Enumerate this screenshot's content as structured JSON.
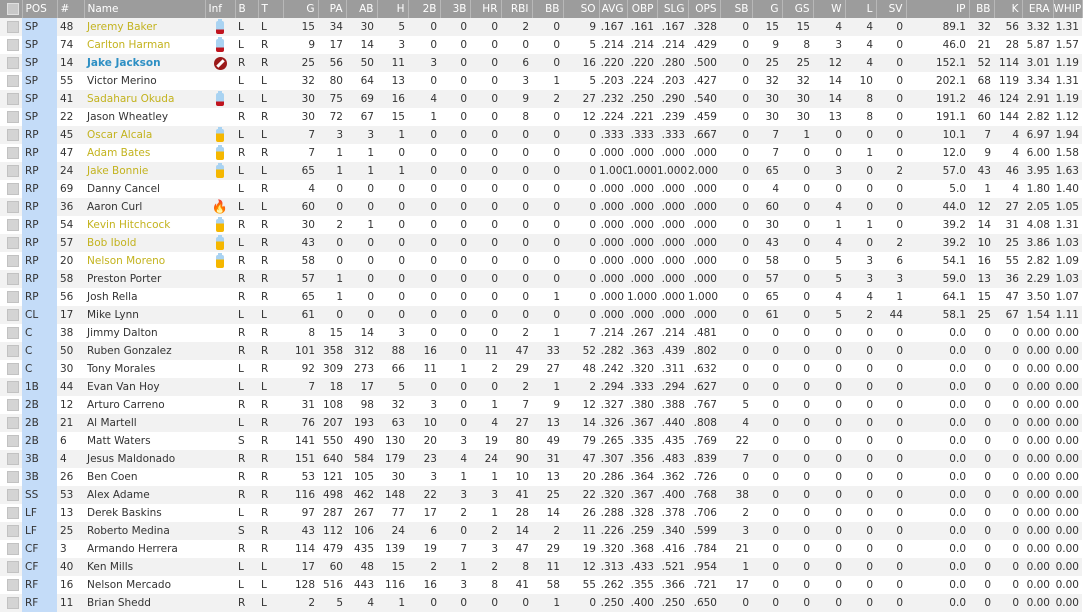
{
  "columns": [
    "POS",
    "#",
    "Name",
    "Inf",
    "B",
    "T",
    "G",
    "PA",
    "AB",
    "H",
    "2B",
    "3B",
    "HR",
    "RBI",
    "BB",
    "SO",
    "AVG",
    "OBP",
    "SLG",
    "OPS",
    "SB",
    "G",
    "GS",
    "W",
    "L",
    "SV",
    "IP",
    "BB",
    "K",
    "ERA",
    "WHIP"
  ],
  "colors": {
    "injured_name": "#c3b31e",
    "suspended_name": "#2d8fc4",
    "pos_column": "#c4dcf8",
    "header": "#9c9c9c"
  },
  "rows": [
    {
      "pos": "SP",
      "num": "48",
      "name": "Jeremy Baker",
      "inf": "battery-low-icon",
      "status": "injured",
      "b": "L",
      "t": "L",
      "stats": [
        "15",
        "34",
        "30",
        "5",
        "0",
        "0",
        "0",
        "2",
        "0",
        "9",
        ".167",
        ".161",
        ".167",
        ".328",
        "0",
        "15",
        "15",
        "4",
        "4",
        "0",
        "89.1",
        "32",
        "56",
        "3.32",
        "1.31"
      ]
    },
    {
      "pos": "SP",
      "num": "74",
      "name": "Carlton Harman",
      "inf": "battery-low-icon",
      "status": "injured",
      "b": "L",
      "t": "R",
      "stats": [
        "9",
        "17",
        "14",
        "3",
        "0",
        "0",
        "0",
        "0",
        "0",
        "5",
        ".214",
        ".214",
        ".214",
        ".429",
        "0",
        "9",
        "8",
        "3",
        "4",
        "0",
        "46.0",
        "21",
        "28",
        "5.87",
        "1.57"
      ]
    },
    {
      "pos": "SP",
      "num": "14",
      "name": "Jake Jackson",
      "inf": "banned-icon",
      "status": "suspended",
      "b": "R",
      "t": "R",
      "stats": [
        "25",
        "56",
        "50",
        "11",
        "3",
        "0",
        "0",
        "6",
        "0",
        "16",
        ".220",
        ".220",
        ".280",
        ".500",
        "0",
        "25",
        "25",
        "12",
        "4",
        "0",
        "152.1",
        "52",
        "114",
        "3.01",
        "1.19"
      ]
    },
    {
      "pos": "SP",
      "num": "55",
      "name": "Victor Merino",
      "inf": "",
      "status": "normal",
      "b": "L",
      "t": "L",
      "stats": [
        "32",
        "80",
        "64",
        "13",
        "0",
        "0",
        "0",
        "3",
        "1",
        "5",
        ".203",
        ".224",
        ".203",
        ".427",
        "0",
        "32",
        "32",
        "14",
        "10",
        "0",
        "202.1",
        "68",
        "119",
        "3.34",
        "1.31"
      ]
    },
    {
      "pos": "SP",
      "num": "41",
      "name": "Sadaharu Okuda",
      "inf": "battery-low-icon",
      "status": "injured",
      "b": "L",
      "t": "L",
      "stats": [
        "30",
        "75",
        "69",
        "16",
        "4",
        "0",
        "0",
        "9",
        "2",
        "27",
        ".232",
        ".250",
        ".290",
        ".540",
        "0",
        "30",
        "30",
        "14",
        "8",
        "0",
        "191.2",
        "46",
        "124",
        "2.91",
        "1.19"
      ]
    },
    {
      "pos": "SP",
      "num": "22",
      "name": "Jason Wheatley",
      "inf": "",
      "status": "normal",
      "b": "R",
      "t": "R",
      "stats": [
        "30",
        "72",
        "67",
        "15",
        "1",
        "0",
        "0",
        "8",
        "0",
        "12",
        ".224",
        ".221",
        ".239",
        ".459",
        "0",
        "30",
        "30",
        "13",
        "8",
        "0",
        "191.1",
        "60",
        "144",
        "2.82",
        "1.12"
      ]
    },
    {
      "pos": "RP",
      "num": "45",
      "name": "Oscar Alcala",
      "inf": "battery-mid-icon",
      "status": "injured",
      "b": "L",
      "t": "L",
      "stats": [
        "7",
        "3",
        "3",
        "1",
        "0",
        "0",
        "0",
        "0",
        "0",
        "0",
        ".333",
        ".333",
        ".333",
        ".667",
        "0",
        "7",
        "1",
        "0",
        "0",
        "0",
        "10.1",
        "7",
        "4",
        "6.97",
        "1.94"
      ]
    },
    {
      "pos": "RP",
      "num": "47",
      "name": "Adam Bates",
      "inf": "battery-mid-icon",
      "status": "injured",
      "b": "R",
      "t": "R",
      "stats": [
        "7",
        "1",
        "1",
        "0",
        "0",
        "0",
        "0",
        "0",
        "0",
        "0",
        ".000",
        ".000",
        ".000",
        ".000",
        "0",
        "7",
        "0",
        "0",
        "1",
        "0",
        "12.0",
        "9",
        "4",
        "6.00",
        "1.58"
      ]
    },
    {
      "pos": "RP",
      "num": "24",
      "name": "Jake Bonnie",
      "inf": "battery-mid-icon",
      "status": "injured",
      "b": "L",
      "t": "L",
      "stats": [
        "65",
        "1",
        "1",
        "1",
        "0",
        "0",
        "0",
        "0",
        "0",
        "0",
        "1.000",
        "1.000",
        "1.000",
        "2.000",
        "0",
        "65",
        "0",
        "3",
        "0",
        "2",
        "57.0",
        "43",
        "46",
        "3.95",
        "1.63"
      ]
    },
    {
      "pos": "RP",
      "num": "69",
      "name": "Danny Cancel",
      "inf": "",
      "status": "normal",
      "b": "L",
      "t": "R",
      "stats": [
        "4",
        "0",
        "0",
        "0",
        "0",
        "0",
        "0",
        "0",
        "0",
        "0",
        ".000",
        ".000",
        ".000",
        ".000",
        "0",
        "4",
        "0",
        "0",
        "0",
        "0",
        "5.0",
        "1",
        "4",
        "1.80",
        "1.40"
      ]
    },
    {
      "pos": "RP",
      "num": "36",
      "name": "Aaron Curl",
      "inf": "fire-icon",
      "status": "normal",
      "b": "L",
      "t": "L",
      "stats": [
        "60",
        "0",
        "0",
        "0",
        "0",
        "0",
        "0",
        "0",
        "0",
        "0",
        ".000",
        ".000",
        ".000",
        ".000",
        "0",
        "60",
        "0",
        "4",
        "0",
        "0",
        "44.0",
        "12",
        "27",
        "2.05",
        "1.05"
      ]
    },
    {
      "pos": "RP",
      "num": "54",
      "name": "Kevin Hitchcock",
      "inf": "battery-mid-icon",
      "status": "injured",
      "b": "R",
      "t": "R",
      "stats": [
        "30",
        "2",
        "1",
        "0",
        "0",
        "0",
        "0",
        "0",
        "0",
        "0",
        ".000",
        ".000",
        ".000",
        ".000",
        "0",
        "30",
        "0",
        "1",
        "1",
        "0",
        "39.2",
        "14",
        "31",
        "4.08",
        "1.31"
      ]
    },
    {
      "pos": "RP",
      "num": "57",
      "name": "Bob Ibold",
      "inf": "battery-mid-icon",
      "status": "injured",
      "b": "L",
      "t": "R",
      "stats": [
        "43",
        "0",
        "0",
        "0",
        "0",
        "0",
        "0",
        "0",
        "0",
        "0",
        ".000",
        ".000",
        ".000",
        ".000",
        "0",
        "43",
        "0",
        "4",
        "0",
        "2",
        "39.2",
        "10",
        "25",
        "3.86",
        "1.03"
      ]
    },
    {
      "pos": "RP",
      "num": "20",
      "name": "Nelson Moreno",
      "inf": "battery-mid-icon",
      "status": "injured",
      "b": "R",
      "t": "R",
      "stats": [
        "58",
        "0",
        "0",
        "0",
        "0",
        "0",
        "0",
        "0",
        "0",
        "0",
        ".000",
        ".000",
        ".000",
        ".000",
        "0",
        "58",
        "0",
        "5",
        "3",
        "6",
        "54.1",
        "16",
        "55",
        "2.82",
        "1.09"
      ]
    },
    {
      "pos": "RP",
      "num": "58",
      "name": "Preston Porter",
      "inf": "",
      "status": "normal",
      "b": "R",
      "t": "R",
      "stats": [
        "57",
        "1",
        "0",
        "0",
        "0",
        "0",
        "0",
        "0",
        "0",
        "0",
        ".000",
        ".000",
        ".000",
        ".000",
        "0",
        "57",
        "0",
        "5",
        "3",
        "3",
        "59.0",
        "13",
        "36",
        "2.29",
        "1.03"
      ]
    },
    {
      "pos": "RP",
      "num": "56",
      "name": "Josh Rella",
      "inf": "",
      "status": "normal",
      "b": "R",
      "t": "R",
      "stats": [
        "65",
        "1",
        "0",
        "0",
        "0",
        "0",
        "0",
        "0",
        "1",
        "0",
        ".000",
        "1.000",
        ".000",
        "1.000",
        "0",
        "65",
        "0",
        "4",
        "4",
        "1",
        "64.1",
        "15",
        "47",
        "3.50",
        "1.07"
      ]
    },
    {
      "pos": "CL",
      "num": "17",
      "name": "Mike Lynn",
      "inf": "",
      "status": "normal",
      "b": "L",
      "t": "L",
      "stats": [
        "61",
        "0",
        "0",
        "0",
        "0",
        "0",
        "0",
        "0",
        "0",
        "0",
        ".000",
        ".000",
        ".000",
        ".000",
        "0",
        "61",
        "0",
        "5",
        "2",
        "44",
        "58.1",
        "25",
        "67",
        "1.54",
        "1.11"
      ]
    },
    {
      "pos": "C",
      "num": "38",
      "name": "Jimmy Dalton",
      "inf": "",
      "status": "normal",
      "b": "R",
      "t": "R",
      "stats": [
        "8",
        "15",
        "14",
        "3",
        "0",
        "0",
        "0",
        "2",
        "1",
        "7",
        ".214",
        ".267",
        ".214",
        ".481",
        "0",
        "0",
        "0",
        "0",
        "0",
        "0",
        "0.0",
        "0",
        "0",
        "0.00",
        "0.00"
      ]
    },
    {
      "pos": "C",
      "num": "50",
      "name": "Ruben Gonzalez",
      "inf": "",
      "status": "normal",
      "b": "R",
      "t": "R",
      "stats": [
        "101",
        "358",
        "312",
        "88",
        "16",
        "0",
        "11",
        "47",
        "33",
        "52",
        ".282",
        ".363",
        ".439",
        ".802",
        "0",
        "0",
        "0",
        "0",
        "0",
        "0",
        "0.0",
        "0",
        "0",
        "0.00",
        "0.00"
      ]
    },
    {
      "pos": "C",
      "num": "30",
      "name": "Tony Morales",
      "inf": "",
      "status": "normal",
      "b": "L",
      "t": "R",
      "stats": [
        "92",
        "309",
        "273",
        "66",
        "11",
        "1",
        "2",
        "29",
        "27",
        "48",
        ".242",
        ".320",
        ".311",
        ".632",
        "0",
        "0",
        "0",
        "0",
        "0",
        "0",
        "0.0",
        "0",
        "0",
        "0.00",
        "0.00"
      ]
    },
    {
      "pos": "1B",
      "num": "44",
      "name": "Evan Van Hoy",
      "inf": "",
      "status": "normal",
      "b": "L",
      "t": "L",
      "stats": [
        "7",
        "18",
        "17",
        "5",
        "0",
        "0",
        "0",
        "2",
        "1",
        "2",
        ".294",
        ".333",
        ".294",
        ".627",
        "0",
        "0",
        "0",
        "0",
        "0",
        "0",
        "0.0",
        "0",
        "0",
        "0.00",
        "0.00"
      ]
    },
    {
      "pos": "2B",
      "num": "12",
      "name": "Arturo Carreno",
      "inf": "",
      "status": "normal",
      "b": "R",
      "t": "R",
      "stats": [
        "31",
        "108",
        "98",
        "32",
        "3",
        "0",
        "1",
        "7",
        "9",
        "12",
        ".327",
        ".380",
        ".388",
        ".767",
        "5",
        "0",
        "0",
        "0",
        "0",
        "0",
        "0.0",
        "0",
        "0",
        "0.00",
        "0.00"
      ]
    },
    {
      "pos": "2B",
      "num": "21",
      "name": "Al Martell",
      "inf": "",
      "status": "normal",
      "b": "L",
      "t": "R",
      "stats": [
        "76",
        "207",
        "193",
        "63",
        "10",
        "0",
        "4",
        "27",
        "13",
        "14",
        ".326",
        ".367",
        ".440",
        ".808",
        "4",
        "0",
        "0",
        "0",
        "0",
        "0",
        "0.0",
        "0",
        "0",
        "0.00",
        "0.00"
      ]
    },
    {
      "pos": "2B",
      "num": "6",
      "name": "Matt Waters",
      "inf": "",
      "status": "normal",
      "b": "S",
      "t": "R",
      "stats": [
        "141",
        "550",
        "490",
        "130",
        "20",
        "3",
        "19",
        "80",
        "49",
        "79",
        ".265",
        ".335",
        ".435",
        ".769",
        "22",
        "0",
        "0",
        "0",
        "0",
        "0",
        "0.0",
        "0",
        "0",
        "0.00",
        "0.00"
      ]
    },
    {
      "pos": "3B",
      "num": "4",
      "name": "Jesus Maldonado",
      "inf": "",
      "status": "normal",
      "b": "R",
      "t": "R",
      "stats": [
        "151",
        "640",
        "584",
        "179",
        "23",
        "4",
        "24",
        "90",
        "31",
        "47",
        ".307",
        ".356",
        ".483",
        ".839",
        "7",
        "0",
        "0",
        "0",
        "0",
        "0",
        "0.0",
        "0",
        "0",
        "0.00",
        "0.00"
      ]
    },
    {
      "pos": "3B",
      "num": "26",
      "name": "Ben Coen",
      "inf": "",
      "status": "normal",
      "b": "R",
      "t": "R",
      "stats": [
        "53",
        "121",
        "105",
        "30",
        "3",
        "1",
        "1",
        "10",
        "13",
        "20",
        ".286",
        ".364",
        ".362",
        ".726",
        "0",
        "0",
        "0",
        "0",
        "0",
        "0",
        "0.0",
        "0",
        "0",
        "0.00",
        "0.00"
      ]
    },
    {
      "pos": "SS",
      "num": "53",
      "name": "Alex Adame",
      "inf": "",
      "status": "normal",
      "b": "R",
      "t": "R",
      "stats": [
        "116",
        "498",
        "462",
        "148",
        "22",
        "3",
        "3",
        "41",
        "25",
        "22",
        ".320",
        ".367",
        ".400",
        ".768",
        "38",
        "0",
        "0",
        "0",
        "0",
        "0",
        "0.0",
        "0",
        "0",
        "0.00",
        "0.00"
      ]
    },
    {
      "pos": "LF",
      "num": "13",
      "name": "Derek Baskins",
      "inf": "",
      "status": "normal",
      "b": "L",
      "t": "R",
      "stats": [
        "97",
        "287",
        "267",
        "77",
        "17",
        "2",
        "1",
        "28",
        "14",
        "26",
        ".288",
        ".328",
        ".378",
        ".706",
        "2",
        "0",
        "0",
        "0",
        "0",
        "0",
        "0.0",
        "0",
        "0",
        "0.00",
        "0.00"
      ]
    },
    {
      "pos": "LF",
      "num": "25",
      "name": "Roberto Medina",
      "inf": "",
      "status": "normal",
      "b": "S",
      "t": "R",
      "stats": [
        "43",
        "112",
        "106",
        "24",
        "6",
        "0",
        "2",
        "14",
        "2",
        "11",
        ".226",
        ".259",
        ".340",
        ".599",
        "3",
        "0",
        "0",
        "0",
        "0",
        "0",
        "0.0",
        "0",
        "0",
        "0.00",
        "0.00"
      ]
    },
    {
      "pos": "CF",
      "num": "3",
      "name": "Armando Herrera",
      "inf": "",
      "status": "normal",
      "b": "R",
      "t": "R",
      "stats": [
        "114",
        "479",
        "435",
        "139",
        "19",
        "7",
        "3",
        "47",
        "29",
        "19",
        ".320",
        ".368",
        ".416",
        ".784",
        "21",
        "0",
        "0",
        "0",
        "0",
        "0",
        "0.0",
        "0",
        "0",
        "0.00",
        "0.00"
      ]
    },
    {
      "pos": "CF",
      "num": "40",
      "name": "Ken Mills",
      "inf": "",
      "status": "normal",
      "b": "L",
      "t": "L",
      "stats": [
        "17",
        "60",
        "48",
        "15",
        "2",
        "1",
        "2",
        "8",
        "11",
        "12",
        ".313",
        ".433",
        ".521",
        ".954",
        "1",
        "0",
        "0",
        "0",
        "0",
        "0",
        "0.0",
        "0",
        "0",
        "0.00",
        "0.00"
      ]
    },
    {
      "pos": "RF",
      "num": "16",
      "name": "Nelson Mercado",
      "inf": "",
      "status": "normal",
      "b": "L",
      "t": "L",
      "stats": [
        "128",
        "516",
        "443",
        "116",
        "16",
        "3",
        "8",
        "41",
        "58",
        "55",
        ".262",
        ".355",
        ".366",
        ".721",
        "17",
        "0",
        "0",
        "0",
        "0",
        "0",
        "0.0",
        "0",
        "0",
        "0.00",
        "0.00"
      ]
    },
    {
      "pos": "RF",
      "num": "11",
      "name": "Brian Shedd",
      "inf": "",
      "status": "normal",
      "b": "R",
      "t": "L",
      "stats": [
        "2",
        "5",
        "4",
        "1",
        "0",
        "0",
        "0",
        "0",
        "1",
        "0",
        ".250",
        ".400",
        ".250",
        ".650",
        "0",
        "0",
        "0",
        "0",
        "0",
        "0",
        "0.0",
        "0",
        "0",
        "0.00",
        "0.00"
      ]
    }
  ]
}
